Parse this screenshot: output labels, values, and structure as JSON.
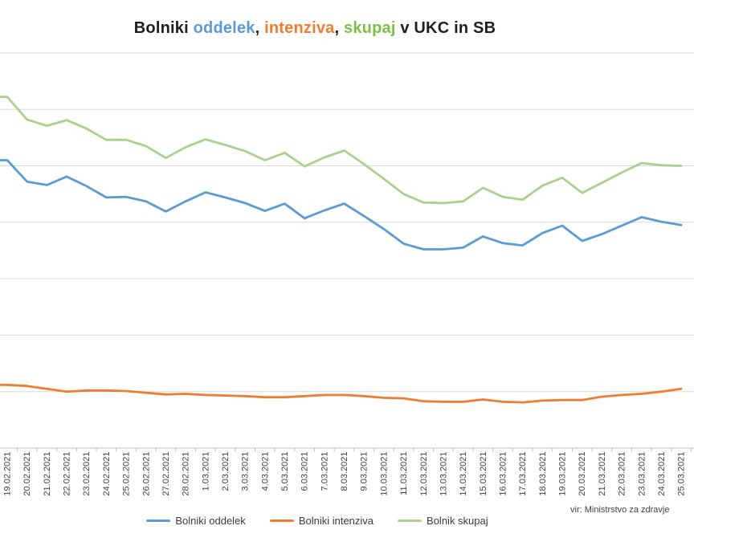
{
  "title": {
    "text": "Bolniki oddelek, intenziva, skupaj v UKC in SB",
    "segments": [
      {
        "text": "Bolniki ",
        "color": "#1f1f1f"
      },
      {
        "text": "oddelek",
        "color": "#5B9BD5"
      },
      {
        "text": ", ",
        "color": "#1f1f1f"
      },
      {
        "text": "intenziva",
        "color": "#ED7D31"
      },
      {
        "text": ", ",
        "color": "#1f1f1f"
      },
      {
        "text": "skupaj",
        "color": "#7CBE46"
      },
      {
        "text": " v UKC in SB",
        "color": "#1f1f1f"
      }
    ]
  },
  "source_note": "vir: Ministrstvo za zdravje",
  "legend": [
    {
      "label": "Bolniki oddelek",
      "color": "#5B9BD5"
    },
    {
      "label": "Bolniki intenziva",
      "color": "#ED7D31"
    },
    {
      "label": "Bolnik skupaj",
      "color": "#A9D18E"
    }
  ],
  "chart_data": {
    "type": "line",
    "title": "Bolniki oddelek, intenziva, skupaj v UKC in SB",
    "xlabel": "",
    "ylabel": "",
    "ylim": [
      0,
      700
    ],
    "grid": true,
    "grid_step": 100,
    "y_axis_labels_visible": false,
    "x_tick_rotation": -90,
    "legend_position": "bottom",
    "x": [
      "19.02.2021",
      "20.02.2021",
      "21.02.2021",
      "22.02.2021",
      "23.02.2021",
      "24.02.2021",
      "25.02.2021",
      "26.02.2021",
      "27.02.2021",
      "28.02.2021",
      "1.03.2021",
      "2.03.2021",
      "3.03.2021",
      "4.03.2021",
      "5.03.2021",
      "6.03.2021",
      "7.03.2021",
      "8.03.2021",
      "9.03.2021",
      "10.03.2021",
      "11.03.2021",
      "12.03.2021",
      "13.03.2021",
      "14.03.2021",
      "15.03.2021",
      "16.03.2021",
      "17.03.2021",
      "18.03.2021",
      "19.03.2021",
      "20.03.2021",
      "21.03.2021",
      "22.03.2021",
      "23.03.2021",
      "24.03.2021",
      "25.03.2021"
    ],
    "series": [
      {
        "name": "Bolniki oddelek",
        "color": "#5B9BD5",
        "values": [
          510,
          472,
          466,
          481,
          464,
          444,
          445,
          437,
          419,
          437,
          453,
          444,
          434,
          420,
          433,
          407,
          421,
          433,
          411,
          388,
          362,
          352,
          352,
          355,
          375,
          363,
          359,
          381,
          394,
          367,
          379,
          394,
          409,
          401,
          395
        ]
      },
      {
        "name": "Bolniki intenziva",
        "color": "#ED7D31",
        "values": [
          112,
          110,
          105,
          100,
          102,
          102,
          101,
          98,
          95,
          96,
          94,
          93,
          92,
          90,
          90,
          92,
          94,
          94,
          92,
          89,
          88,
          83,
          82,
          82,
          86,
          82,
          81,
          84,
          85,
          85,
          91,
          94,
          96,
          100,
          105
        ]
      },
      {
        "name": "Bolnik skupaj",
        "color": "#A9D18E",
        "values": [
          622,
          582,
          571,
          581,
          566,
          546,
          546,
          535,
          514,
          533,
          547,
          537,
          526,
          510,
          523,
          499,
          515,
          527,
          503,
          477,
          450,
          435,
          434,
          437,
          461,
          445,
          440,
          465,
          479,
          452,
          470,
          488,
          505,
          501,
          500
        ]
      }
    ],
    "axis_colors": {
      "gridline": "#D9D9D9",
      "axis_line": "#BFBFBF",
      "tick": "#BFBFBF",
      "tick_label": "#404040"
    }
  }
}
